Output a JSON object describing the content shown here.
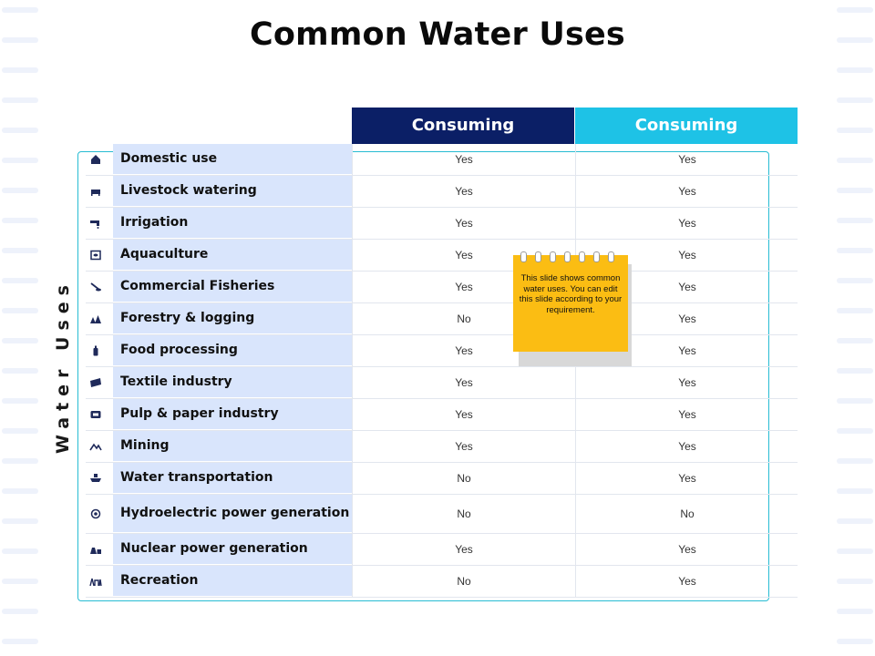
{
  "title": "Common Water Uses",
  "side_label": "Water Uses",
  "columns": [
    "Consuming",
    "Consuming"
  ],
  "colors": {
    "header_dark": "#0b1f66",
    "header_light": "#1ec2e6",
    "label_bg": "#d9e5fc",
    "bracket": "#27bcd3",
    "note": "#fbbd13"
  },
  "rows": [
    {
      "icon": "house-icon",
      "label": "Domestic use",
      "col1": "Yes",
      "col2": "Yes"
    },
    {
      "icon": "cow-icon",
      "label": "Livestock watering",
      "col1": "Yes",
      "col2": "Yes"
    },
    {
      "icon": "faucet-icon",
      "label": "Irrigation",
      "col1": "Yes",
      "col2": "Yes"
    },
    {
      "icon": "fish-tank-icon",
      "label": "Aquaculture",
      "col1": "Yes",
      "col2": "Yes"
    },
    {
      "icon": "fishing-icon",
      "label": "Commercial Fisheries",
      "col1": "Yes",
      "col2": "Yes"
    },
    {
      "icon": "trees-icon",
      "label": "Forestry & logging",
      "col1": "No",
      "col2": "Yes"
    },
    {
      "icon": "bottle-icon",
      "label": "Food processing",
      "col1": "Yes",
      "col2": "Yes"
    },
    {
      "icon": "fabric-icon",
      "label": "Textile industry",
      "col1": "Yes",
      "col2": "Yes"
    },
    {
      "icon": "paper-roll-icon",
      "label": "Pulp & paper industry",
      "col1": "Yes",
      "col2": "Yes"
    },
    {
      "icon": "mountain-icon",
      "label": "Mining",
      "col1": "Yes",
      "col2": "Yes"
    },
    {
      "icon": "ship-icon",
      "label": "Water transportation",
      "col1": "No",
      "col2": "Yes"
    },
    {
      "icon": "turbine-icon",
      "label": "Hydroelectric power generation",
      "col1": "No",
      "col2": "No"
    },
    {
      "icon": "nuclear-plant-icon",
      "label": "Nuclear power generation",
      "col1": "Yes",
      "col2": "Yes"
    },
    {
      "icon": "recreation-icon",
      "label": "Recreation",
      "col1": "No",
      "col2": "Yes"
    }
  ],
  "note": {
    "text": "This slide shows common water uses. You can edit this slide according to your requirement."
  }
}
